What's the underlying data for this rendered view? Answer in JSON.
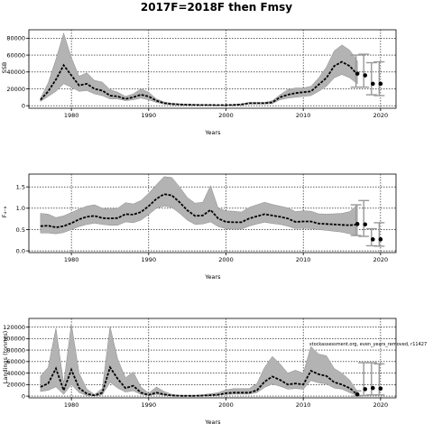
{
  "title": "2017F=2018F then Fmsy",
  "chart_data": [
    {
      "type": "line",
      "id": "ssb",
      "ylabel": "SSB",
      "xlabel": "Years",
      "xlim": [
        1974.5,
        2022
      ],
      "ylim": [
        -3000,
        90000
      ],
      "xticks": [
        1980,
        1990,
        2000,
        2010,
        2020
      ],
      "yticks": [
        0,
        20000,
        40000,
        60000,
        80000
      ],
      "ytick_labels": [
        "0",
        "20000",
        "40000",
        "60000",
        "80000"
      ],
      "grid": true,
      "x": [
        1976,
        1977,
        1978,
        1979,
        1980,
        1981,
        1982,
        1983,
        1984,
        1985,
        1986,
        1987,
        1988,
        1989,
        1990,
        1991,
        1992,
        1993,
        1994,
        1995,
        1996,
        1997,
        1998,
        1999,
        2000,
        2001,
        2002,
        2003,
        2004,
        2005,
        2006,
        2007,
        2008,
        2009,
        2010,
        2011,
        2012,
        2013,
        2014,
        2015,
        2016,
        2017
      ],
      "median": [
        7000,
        17000,
        31000,
        48000,
        36000,
        24000,
        26000,
        20000,
        18000,
        12000,
        11000,
        8000,
        10000,
        13000,
        11000,
        6000,
        3000,
        2000,
        1500,
        1200,
        1000,
        900,
        800,
        700,
        700,
        1000,
        1500,
        3000,
        3000,
        3000,
        4000,
        10000,
        13000,
        15000,
        16000,
        17000,
        25000,
        33000,
        47000,
        52000,
        47000,
        37000
      ],
      "lower": [
        5000,
        11000,
        17000,
        26000,
        22000,
        17000,
        18000,
        14000,
        12000,
        8000,
        8000,
        6000,
        7000,
        9000,
        7000,
        4000,
        2000,
        1200,
        1000,
        800,
        600,
        500,
        500,
        400,
        400,
        600,
        1000,
        2000,
        2000,
        2000,
        2500,
        7000,
        9000,
        10000,
        11000,
        12000,
        17000,
        23000,
        33000,
        37000,
        33000,
        26000
      ],
      "upper": [
        9000,
        27000,
        55000,
        86000,
        57000,
        35000,
        39000,
        30000,
        28000,
        19000,
        16000,
        11000,
        14000,
        20000,
        16000,
        8000,
        4500,
        3000,
        2200,
        1800,
        1500,
        1300,
        1200,
        1000,
        1000,
        1500,
        2200,
        4000,
        4000,
        4000,
        6000,
        13000,
        19000,
        21000,
        21000,
        23000,
        33000,
        46000,
        65000,
        72000,
        66000,
        53000
      ],
      "projection": {
        "x": [
          2017,
          2018,
          2019,
          2020
        ],
        "points": [
          38000,
          36000,
          26000,
          26000
        ],
        "lower": [
          22000,
          22000,
          13000,
          12000
        ],
        "upper": [
          60000,
          61000,
          51000,
          52000
        ]
      }
    },
    {
      "type": "line",
      "id": "fbar",
      "ylabel": "F₄₋₈",
      "xlabel": "Years",
      "xlim": [
        1974.5,
        2022
      ],
      "ylim": [
        -0.04,
        1.8
      ],
      "xticks": [
        1980,
        1990,
        2000,
        2010,
        2020
      ],
      "yticks": [
        0,
        0.5,
        1.0,
        1.5
      ],
      "ytick_labels": [
        "0.0",
        "0.5",
        "1.0",
        "1.5"
      ],
      "grid": true,
      "x": [
        1976,
        1977,
        1978,
        1979,
        1980,
        1981,
        1982,
        1983,
        1984,
        1985,
        1986,
        1987,
        1988,
        1989,
        1990,
        1991,
        1992,
        1993,
        1994,
        1995,
        1996,
        1997,
        1998,
        1999,
        2000,
        2001,
        2002,
        2003,
        2004,
        2005,
        2006,
        2007,
        2008,
        2009,
        2010,
        2011,
        2012,
        2013,
        2014,
        2015,
        2016,
        2017
      ],
      "median": [
        0.58,
        0.59,
        0.55,
        0.58,
        0.65,
        0.74,
        0.8,
        0.82,
        0.77,
        0.76,
        0.77,
        0.86,
        0.85,
        0.91,
        1.05,
        1.22,
        1.33,
        1.3,
        1.14,
        0.95,
        0.82,
        0.83,
        0.96,
        0.76,
        0.68,
        0.67,
        0.67,
        0.76,
        0.81,
        0.86,
        0.83,
        0.8,
        0.76,
        0.68,
        0.69,
        0.69,
        0.64,
        0.63,
        0.62,
        0.61,
        0.6,
        0.62
      ],
      "lower": [
        0.42,
        0.42,
        0.4,
        0.43,
        0.5,
        0.57,
        0.62,
        0.65,
        0.62,
        0.6,
        0.6,
        0.68,
        0.66,
        0.72,
        0.85,
        1.0,
        1.05,
        1.02,
        0.88,
        0.72,
        0.62,
        0.63,
        0.68,
        0.57,
        0.52,
        0.51,
        0.51,
        0.58,
        0.63,
        0.67,
        0.64,
        0.62,
        0.58,
        0.52,
        0.53,
        0.52,
        0.5,
        0.48,
        0.46,
        0.44,
        0.4,
        0.36
      ],
      "upper": [
        0.88,
        0.86,
        0.78,
        0.82,
        0.9,
        0.98,
        1.05,
        1.08,
        1.0,
        0.98,
        1.0,
        1.13,
        1.1,
        1.18,
        1.35,
        1.55,
        1.74,
        1.72,
        1.5,
        1.25,
        1.12,
        1.14,
        1.53,
        1.0,
        0.94,
        0.93,
        0.91,
        1.02,
        1.08,
        1.14,
        1.09,
        1.05,
        1.01,
        0.92,
        0.94,
        0.93,
        0.87,
        0.86,
        0.87,
        0.88,
        0.92,
        1.08
      ],
      "projection": {
        "x": [
          2017,
          2018,
          2019,
          2020
        ],
        "points": [
          0.63,
          0.62,
          0.27,
          0.27
        ],
        "lower": [
          0.36,
          0.34,
          0.12,
          0.11
        ],
        "upper": [
          1.08,
          1.18,
          0.52,
          0.66
        ]
      }
    },
    {
      "type": "line",
      "id": "landings",
      "ylabel": "Landings (tonnes)",
      "xlabel": "Years",
      "xlim": [
        1974.5,
        2022
      ],
      "ylim": [
        -3000,
        135000
      ],
      "xticks": [
        1980,
        1990,
        2000,
        2010,
        2020
      ],
      "yticks": [
        0,
        20000,
        40000,
        60000,
        80000,
        100000,
        120000
      ],
      "ytick_labels": [
        "0",
        "20000",
        "40000",
        "60000",
        "80000",
        "100000",
        "120000"
      ],
      "grid": true,
      "annotation": "stockassessment.org, even_years_removed, r11427",
      "x": [
        1976,
        1977,
        1978,
        1979,
        1980,
        1981,
        1982,
        1983,
        1984,
        1985,
        1986,
        1987,
        1988,
        1989,
        1990,
        1991,
        1992,
        1993,
        1994,
        1995,
        1996,
        1997,
        1998,
        1999,
        2000,
        2001,
        2002,
        2003,
        2004,
        2005,
        2006,
        2007,
        2008,
        2009,
        2010,
        2011,
        2012,
        2013,
        2014,
        2015,
        2016,
        2017
      ],
      "median": [
        16000,
        22000,
        48000,
        10000,
        46000,
        14000,
        4000,
        1000,
        6000,
        50000,
        30000,
        14000,
        18000,
        6000,
        2000,
        6000,
        3000,
        1000,
        500,
        500,
        500,
        800,
        1500,
        2500,
        5000,
        6000,
        6000,
        6000,
        10000,
        25000,
        34000,
        28000,
        20000,
        22000,
        20000,
        44000,
        38000,
        35000,
        24000,
        20000,
        14000,
        3000
      ],
      "lower": [
        8000,
        10000,
        16000,
        3000,
        20000,
        6000,
        1000,
        500,
        2000,
        24000,
        14000,
        7000,
        9000,
        3000,
        1000,
        3000,
        1500,
        500,
        300,
        300,
        300,
        500,
        1000,
        1500,
        3000,
        3500,
        3500,
        3500,
        6000,
        15000,
        21000,
        17000,
        12000,
        13000,
        12000,
        27000,
        23000,
        21000,
        14000,
        12000,
        6000,
        500
      ],
      "upper": [
        35000,
        50000,
        118000,
        22000,
        126000,
        40000,
        12000,
        3000,
        13000,
        121000,
        64000,
        32000,
        42000,
        16000,
        5000,
        16000,
        8000,
        3000,
        1500,
        1500,
        1500,
        2500,
        4000,
        6000,
        11000,
        13000,
        13000,
        13000,
        22000,
        50000,
        69000,
        56000,
        40000,
        45000,
        40000,
        86000,
        73000,
        70000,
        48000,
        40000,
        28000,
        8000
      ],
      "projection": {
        "x": [
          2017,
          2018,
          2019,
          2020
        ],
        "points": [
          3000,
          12000,
          14000,
          13000
        ],
        "lower": [
          0,
          1000,
          2000,
          2000
        ],
        "upper": [
          9000,
          58000,
          58000,
          56000
        ]
      }
    }
  ]
}
